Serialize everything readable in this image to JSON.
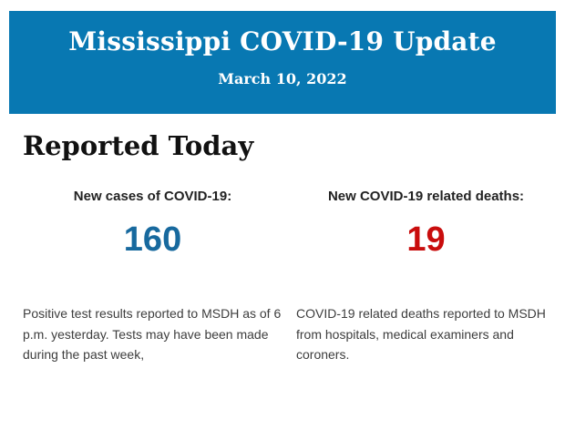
{
  "banner": {
    "title": "Mississippi COVID-19 Update",
    "date": "March 10, 2022",
    "background_color": "#0878B2",
    "text_color": "#FFFFFF"
  },
  "section": {
    "heading": "Reported Today"
  },
  "stats": [
    {
      "label": "New cases of COVID-19:",
      "value": "160",
      "value_color": "#17699E",
      "description": "Positive test results reported to MSDH as of 6 p.m. yesterday. Tests may have been made during the past week,"
    },
    {
      "label": "New COVID-19 related deaths:",
      "value": "19",
      "value_color": "#C90D0D",
      "description": "COVID-19 related deaths reported to MSDH from hospitals, medical examiners and coroners."
    }
  ]
}
